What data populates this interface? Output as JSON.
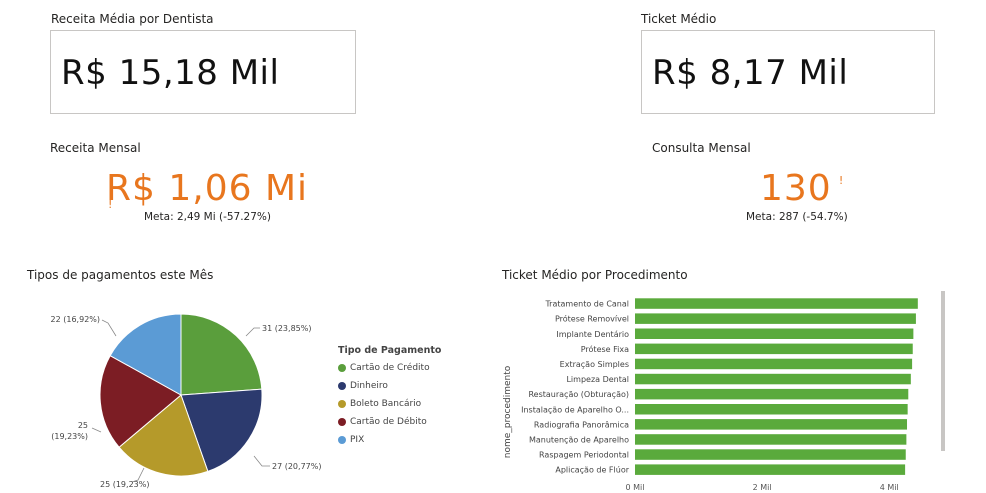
{
  "cards": {
    "receita_media": {
      "title": "Receita Média por Dentista",
      "value": "R$ 15,18 Mil"
    },
    "ticket_medio": {
      "title": "Ticket Médio",
      "value": "R$ 8,17 Mil"
    }
  },
  "kpis": {
    "receita_mensal": {
      "title": "Receita Mensal",
      "value": "R$ 1,06 Mi",
      "alert": "!",
      "goal": "Meta: 2,49 Mi (-57.27%)"
    },
    "consulta_mensal": {
      "title": "Consulta Mensal",
      "value": "130",
      "alert": "!",
      "goal": "Meta: 287 (-54.7%)"
    }
  },
  "colors": {
    "accent": "#e8761e"
  },
  "chart_data": [
    {
      "type": "pie",
      "title": "Tipos de pagamentos este Mês",
      "legend_title": "Tipo de Pagamento",
      "legend_position": "right",
      "slices": [
        {
          "name": "Cartão de Crédito",
          "value": 31,
          "label": "31 (23,85%)",
          "color": "#5a9e3c"
        },
        {
          "name": "Dinheiro",
          "value": 27,
          "label": "27 (20,77%)",
          "color": "#2c3a6e"
        },
        {
          "name": "Boleto Bancário",
          "value": 25,
          "label": "25 (19,23%)",
          "color": "#b59a2a"
        },
        {
          "name": "Cartão de Débito",
          "value": 25,
          "label_value": "25",
          "label_pct": "(19,23%)",
          "color": "#7c1d24"
        },
        {
          "name": "PIX",
          "value": 22,
          "label": "22 (16,92%)",
          "color": "#5b9bd5"
        }
      ]
    },
    {
      "type": "bar",
      "orientation": "horizontal",
      "title": "Ticket Médio por Procedimento",
      "ylabel": "nome_procedimento",
      "x_ticks": [
        "0 Mil",
        "2 Mil",
        "4 Mil"
      ],
      "xlim": [
        0,
        4500
      ],
      "color": "#5aaa3c",
      "categories": [
        "Tratamento de Canal",
        "Prótese Removível",
        "Implante Dentário",
        "Prótese Fixa",
        "Extração Simples",
        "Limpeza Dental",
        "Restauração (Obturação)",
        "Instalação de Aparelho O...",
        "Radiografia Panorâmica",
        "Manutenção de Aparelho",
        "Raspagem Periodontal",
        "Aplicação de Flúor"
      ],
      "values": [
        4450,
        4420,
        4380,
        4370,
        4360,
        4340,
        4300,
        4290,
        4280,
        4270,
        4260,
        4250
      ]
    }
  ]
}
